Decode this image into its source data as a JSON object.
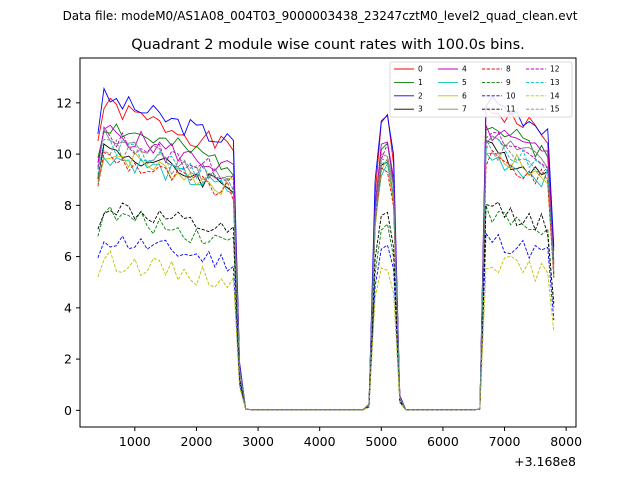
{
  "suptitle": "Data file: modeM0/AS1A08_004T03_9000003438_23247cztM0_level2_quad_clean.evt",
  "chart_data": {
    "type": "line",
    "title": "Quadrant 2 module wise count rates with 100.0s bins.",
    "xlabel": "",
    "ylabel": "",
    "x_offset_label": "+3.168e8",
    "xlim": [
      110,
      8160
    ],
    "ylim": [
      -0.65,
      13.75
    ],
    "xticks": [
      1000,
      2000,
      3000,
      4000,
      5000,
      6000,
      7000,
      8000
    ],
    "xtick_labels": [
      "1000",
      "2000",
      "3000",
      "4000",
      "5000",
      "6000",
      "7000",
      "8000"
    ],
    "yticks": [
      0,
      2,
      4,
      6,
      8,
      10,
      12
    ],
    "ytick_labels": [
      "0",
      "2",
      "4",
      "6",
      "8",
      "10",
      "12"
    ],
    "grid": false,
    "legend_position": "top-right",
    "segments": [
      {
        "x": [
          400,
          500,
          600,
          700,
          800,
          900,
          1000,
          1100,
          1200,
          1300,
          1400,
          1500,
          1600,
          1700,
          1800,
          1900,
          2000,
          2100,
          2200,
          2300,
          2400,
          2500,
          2600,
          2700,
          2800
        ],
        "shape": "on"
      },
      {
        "x": [
          2900,
          3000,
          3100,
          3200,
          3300,
          3400,
          3500,
          3600,
          3700,
          3800,
          3900,
          4000,
          4100,
          4200,
          4300,
          4400,
          4500,
          4600,
          4700
        ],
        "shape": "off"
      },
      {
        "x": [
          4800,
          4900,
          5000,
          5100,
          5200,
          5300
        ],
        "shape": "mid"
      },
      {
        "x": [
          5400,
          5500,
          5600,
          5700,
          5800,
          5900,
          6000,
          6100,
          6200,
          6300,
          6400,
          6500
        ],
        "shape": "off"
      },
      {
        "x": [
          6600,
          6700,
          6800,
          6900,
          7000,
          7100,
          7200,
          7300,
          7400,
          7500,
          7600,
          7700,
          7800
        ],
        "shape": "on2"
      }
    ],
    "series": [
      {
        "name": "0",
        "color": "#ff0000",
        "dash": "solid",
        "level": 11.3
      },
      {
        "name": "1",
        "color": "#008000",
        "dash": "solid",
        "level": 10.6
      },
      {
        "name": "2",
        "color": "#0000ff",
        "dash": "solid",
        "level": 11.6
      },
      {
        "name": "3",
        "color": "#000000",
        "dash": "solid",
        "level": 9.7
      },
      {
        "name": "4",
        "color": "#bf00bf",
        "dash": "solid",
        "level": 10.4
      },
      {
        "name": "5",
        "color": "#00bfbf",
        "dash": "solid",
        "level": 9.5
      },
      {
        "name": "6",
        "color": "#bfbf00",
        "dash": "solid",
        "level": 9.6
      },
      {
        "name": "7",
        "color": "#808080",
        "dash": "solid",
        "level": 10.1
      },
      {
        "name": "8",
        "color": "#ff0000",
        "dash": "dashed",
        "level": 9.4
      },
      {
        "name": "9",
        "color": "#008000",
        "dash": "dashed",
        "level": 7.3
      },
      {
        "name": "10",
        "color": "#0000ff",
        "dash": "dashed",
        "level": 6.4
      },
      {
        "name": "11",
        "color": "#000000",
        "dash": "dashed",
        "level": 7.6
      },
      {
        "name": "12",
        "color": "#bf00bf",
        "dash": "dashed",
        "level": 10.2
      },
      {
        "name": "13",
        "color": "#00bfbf",
        "dash": "dashed",
        "level": 9.9
      },
      {
        "name": "14",
        "color": "#bfbf00",
        "dash": "dashed",
        "level": 5.6
      },
      {
        "name": "15",
        "color": "#808080",
        "dash": "dashed",
        "level": 9.8
      }
    ]
  }
}
